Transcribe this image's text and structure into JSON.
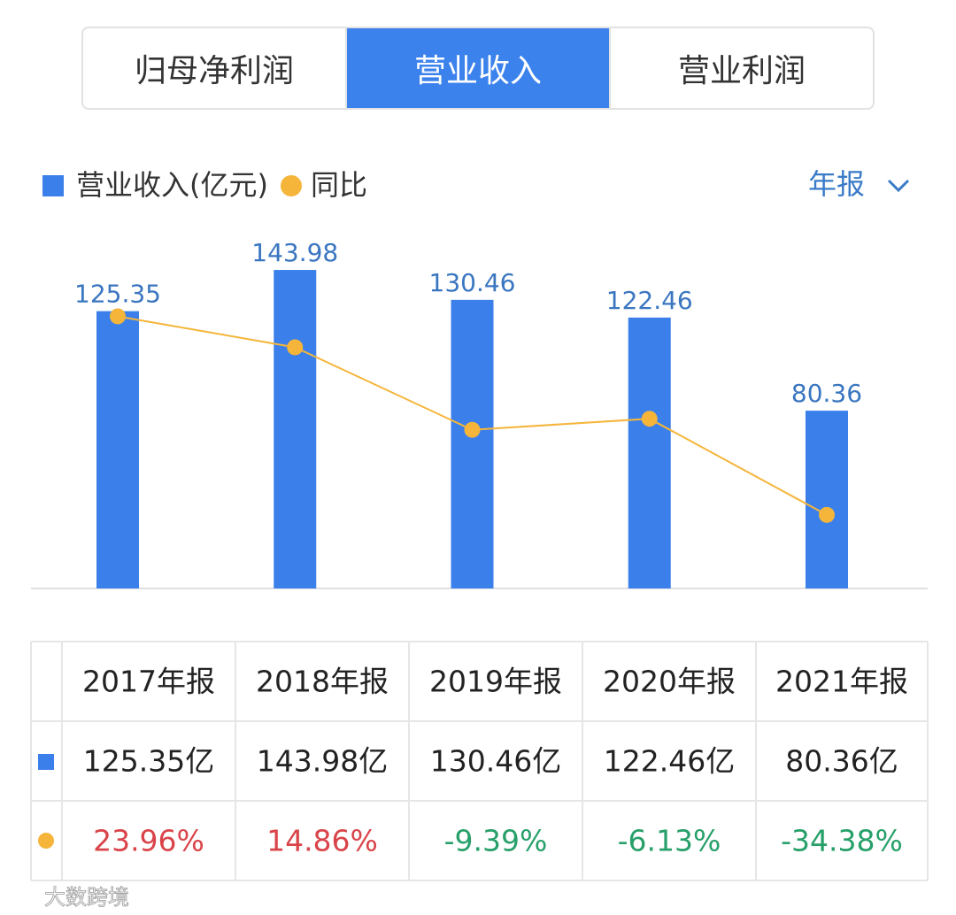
{
  "tabs": [
    "归母净利润",
    "营业收入",
    "营业利润"
  ],
  "active_tab": 1,
  "period": "年报",
  "chart_data": {
    "type": "bar",
    "series": [
      {
        "name": "营业收入(亿元)",
        "color": "#3b80ea",
        "values": [
          125.35,
          143.98,
          130.46,
          122.46,
          80.36
        ]
      },
      {
        "name": "同比",
        "color": "#f5b53a",
        "type": "line",
        "axis": "y2",
        "values": [
          23.96,
          14.86,
          -9.39,
          -6.13,
          -34.38
        ]
      }
    ],
    "ylim": [
      0,
      150
    ],
    "y2lim": [
      -56,
      41.5
    ]
  },
  "table": {
    "columns": [
      "2017年报",
      "2018年报",
      "2019年报",
      "2020年报",
      "2021年报"
    ],
    "rows": [
      [
        "125.35亿",
        "143.98亿",
        "130.46亿",
        "122.46亿",
        "80.36亿"
      ],
      [
        "23.96%",
        "14.86%",
        "-9.39%",
        "-6.13%",
        "-34.38%"
      ]
    ]
  },
  "watermark": "大数跨境"
}
